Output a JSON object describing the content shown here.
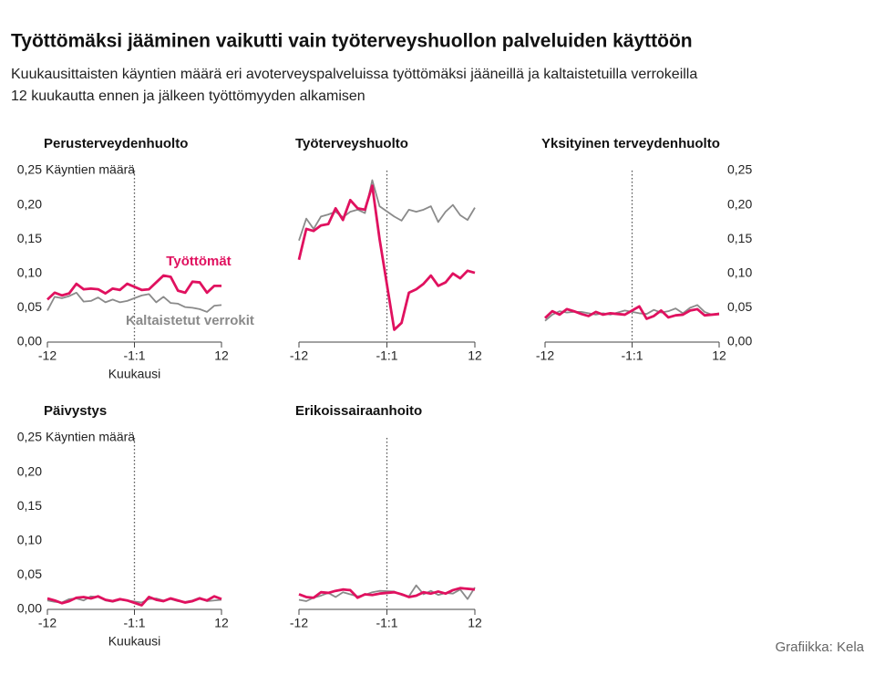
{
  "title": "Työttömäksi jääminen vaikutti vain työterveyshuollon palveluiden käyttöön",
  "subtitle": [
    "Kuukausittaisten käyntien määrä eri avoterveyspalveluissa työttömäksi jääneillä ja kaltaistetuilla verrokeilla",
    "12 kuukautta ennen ja jälkeen työttömyyden alkamisen"
  ],
  "source": "Grafiikka: Kela",
  "chart_data": [
    {
      "type": "line",
      "title": "Perusterveydenhuolto",
      "ylabel": "Käyntien määrä",
      "xlabel": "Kuukausi",
      "x": [
        -12,
        -11,
        -10,
        -9,
        -8,
        -7,
        -6,
        -5,
        -4,
        -3,
        -2,
        -1,
        1,
        2,
        3,
        4,
        5,
        6,
        7,
        8,
        9,
        10,
        11,
        12
      ],
      "xlim": [
        -12,
        12
      ],
      "xticks": [
        -12,
        {
          "value": 0,
          "label": "-1:1"
        },
        12
      ],
      "ylim": [
        0,
        0.25
      ],
      "y_axis_position": "left",
      "yticks": [
        {
          "value": 0,
          "label": "0,00"
        },
        {
          "value": 0.05,
          "label": "0,05"
        },
        {
          "value": 0.1,
          "label": "0,10"
        },
        {
          "value": 0.15,
          "label": "0,15"
        },
        {
          "value": 0.2,
          "label": "0,20"
        },
        {
          "value": 0.25,
          "label": "0,25"
        }
      ],
      "series": [
        {
          "name": "Kaltaistetut verrokit",
          "color": "#8a8a8a",
          "values": [
            0.046,
            0.066,
            0.064,
            0.067,
            0.072,
            0.059,
            0.06,
            0.065,
            0.058,
            0.062,
            0.058,
            0.06,
            0.068,
            0.07,
            0.058,
            0.066,
            0.057,
            0.056,
            0.051,
            0.05,
            0.048,
            0.044,
            0.053,
            0.054
          ]
        },
        {
          "name": "Työttömät",
          "color": "#e0115f",
          "values": [
            0.062,
            0.072,
            0.068,
            0.071,
            0.085,
            0.077,
            0.078,
            0.077,
            0.071,
            0.078,
            0.076,
            0.085,
            0.076,
            0.077,
            0.087,
            0.097,
            0.095,
            0.075,
            0.072,
            0.088,
            0.087,
            0.072,
            0.082,
            0.082
          ]
        }
      ]
    },
    {
      "type": "line",
      "title": "Työterveyshuolto",
      "x": [
        -12,
        -11,
        -10,
        -9,
        -8,
        -7,
        -6,
        -5,
        -4,
        -3,
        -2,
        -1,
        1,
        2,
        3,
        4,
        5,
        6,
        7,
        8,
        9,
        10,
        11,
        12
      ],
      "xlim": [
        -12,
        12
      ],
      "xticks": [
        -12,
        {
          "value": 0,
          "label": "-1:1"
        },
        12
      ],
      "ylim": [
        0,
        0.25
      ],
      "series": [
        {
          "color": "#8a8a8a",
          "values": [
            0.148,
            0.18,
            0.165,
            0.183,
            0.186,
            0.19,
            0.182,
            0.19,
            0.193,
            0.188,
            0.236,
            0.198,
            0.183,
            0.177,
            0.193,
            0.19,
            0.193,
            0.198,
            0.175,
            0.19,
            0.2,
            0.185,
            0.178,
            0.196
          ]
        },
        {
          "color": "#e0115f",
          "values": [
            0.12,
            0.165,
            0.162,
            0.17,
            0.172,
            0.195,
            0.178,
            0.207,
            0.195,
            0.193,
            0.228,
            0.15,
            0.018,
            0.028,
            0.072,
            0.077,
            0.085,
            0.097,
            0.082,
            0.087,
            0.1,
            0.093,
            0.104,
            0.101
          ]
        }
      ]
    },
    {
      "type": "line",
      "title": "Yksityinen terveydenhuolto",
      "x": [
        -12,
        -11,
        -10,
        -9,
        -8,
        -7,
        -6,
        -5,
        -4,
        -3,
        -2,
        -1,
        1,
        2,
        3,
        4,
        5,
        6,
        7,
        8,
        9,
        10,
        11,
        12
      ],
      "xlim": [
        -12,
        12
      ],
      "xticks": [
        -12,
        {
          "value": 0,
          "label": "-1:1"
        },
        12
      ],
      "ylim": [
        0,
        0.25
      ],
      "y_axis_position": "right",
      "yticks": [
        {
          "value": 0,
          "label": "0,00"
        },
        {
          "value": 0.05,
          "label": "0,05"
        },
        {
          "value": 0.1,
          "label": "0,10"
        },
        {
          "value": 0.15,
          "label": "0,15"
        },
        {
          "value": 0.2,
          "label": "0,20"
        },
        {
          "value": 0.25,
          "label": "0,25"
        }
      ],
      "series": [
        {
          "color": "#8a8a8a",
          "values": [
            0.031,
            0.04,
            0.045,
            0.043,
            0.044,
            0.044,
            0.042,
            0.04,
            0.042,
            0.04,
            0.043,
            0.046,
            0.042,
            0.041,
            0.047,
            0.043,
            0.045,
            0.049,
            0.042,
            0.05,
            0.054,
            0.044,
            0.04,
            0.042
          ]
        },
        {
          "color": "#e0115f",
          "values": [
            0.035,
            0.045,
            0.04,
            0.048,
            0.045,
            0.041,
            0.038,
            0.044,
            0.04,
            0.042,
            0.041,
            0.04,
            0.052,
            0.034,
            0.038,
            0.046,
            0.036,
            0.039,
            0.04,
            0.046,
            0.048,
            0.039,
            0.04,
            0.041
          ]
        }
      ]
    },
    {
      "type": "line",
      "title": "Päivystys",
      "ylabel": "Käyntien määrä",
      "xlabel": "Kuukausi",
      "x": [
        -12,
        -11,
        -10,
        -9,
        -8,
        -7,
        -6,
        -5,
        -4,
        -3,
        -2,
        -1,
        1,
        2,
        3,
        4,
        5,
        6,
        7,
        8,
        9,
        10,
        11,
        12
      ],
      "xlim": [
        -12,
        12
      ],
      "xticks": [
        -12,
        {
          "value": 0,
          "label": "-1:1"
        },
        12
      ],
      "ylim": [
        0,
        0.25
      ],
      "y_axis_position": "left",
      "yticks": [
        {
          "value": 0,
          "label": "0,00"
        },
        {
          "value": 0.05,
          "label": "0,05"
        },
        {
          "value": 0.1,
          "label": "0,10"
        },
        {
          "value": 0.15,
          "label": "0,15"
        },
        {
          "value": 0.2,
          "label": "0,20"
        },
        {
          "value": 0.25,
          "label": "0,25"
        }
      ],
      "series": [
        {
          "color": "#8a8a8a",
          "values": [
            0.013,
            0.011,
            0.01,
            0.015,
            0.016,
            0.013,
            0.019,
            0.018,
            0.013,
            0.011,
            0.014,
            0.013,
            0.01,
            0.015,
            0.016,
            0.013,
            0.015,
            0.012,
            0.011,
            0.013,
            0.017,
            0.012,
            0.013,
            0.014
          ]
        },
        {
          "color": "#e0115f",
          "values": [
            0.016,
            0.013,
            0.009,
            0.012,
            0.017,
            0.018,
            0.016,
            0.019,
            0.014,
            0.012,
            0.015,
            0.013,
            0.006,
            0.018,
            0.014,
            0.012,
            0.016,
            0.013,
            0.01,
            0.012,
            0.016,
            0.013,
            0.019,
            0.015
          ]
        }
      ]
    },
    {
      "type": "line",
      "title": "Erikoissairaanhoito",
      "x": [
        -12,
        -11,
        -10,
        -9,
        -8,
        -7,
        -6,
        -5,
        -4,
        -3,
        -2,
        -1,
        1,
        2,
        3,
        4,
        5,
        6,
        7,
        8,
        9,
        10,
        11,
        12
      ],
      "xlim": [
        -12,
        12
      ],
      "xticks": [
        -12,
        {
          "value": 0,
          "label": "-1:1"
        },
        12
      ],
      "ylim": [
        0,
        0.25
      ],
      "series": [
        {
          "color": "#8a8a8a",
          "values": [
            0.014,
            0.012,
            0.017,
            0.02,
            0.024,
            0.018,
            0.025,
            0.022,
            0.019,
            0.021,
            0.025,
            0.027,
            0.026,
            0.021,
            0.019,
            0.035,
            0.022,
            0.027,
            0.021,
            0.024,
            0.023,
            0.029,
            0.015,
            0.032
          ]
        },
        {
          "color": "#e0115f",
          "values": [
            0.022,
            0.018,
            0.017,
            0.025,
            0.024,
            0.027,
            0.029,
            0.028,
            0.017,
            0.022,
            0.021,
            0.023,
            0.025,
            0.022,
            0.018,
            0.02,
            0.025,
            0.023,
            0.026,
            0.023,
            0.028,
            0.031,
            0.03,
            0.029
          ]
        }
      ]
    }
  ]
}
